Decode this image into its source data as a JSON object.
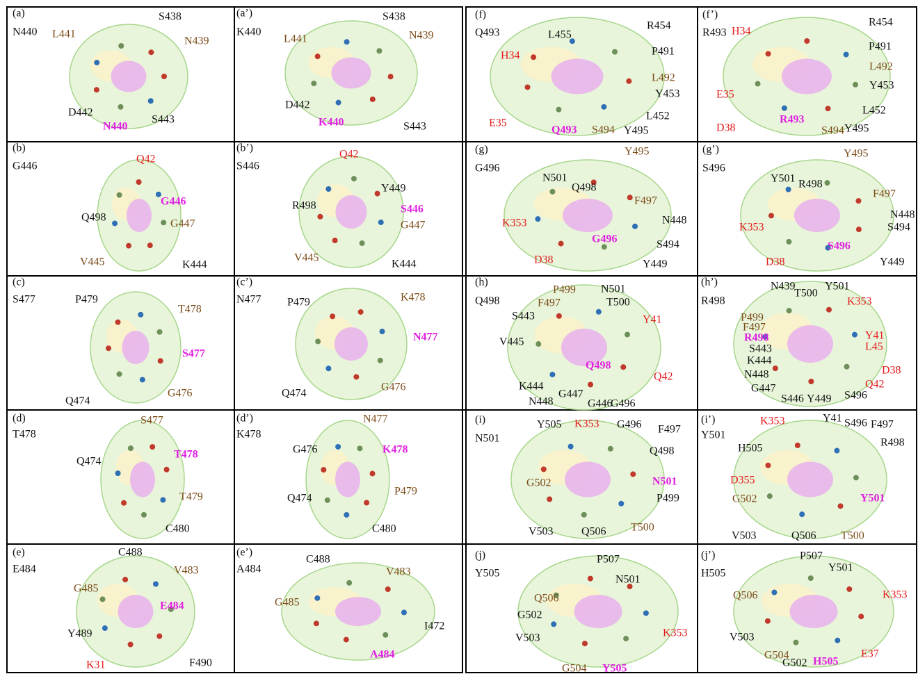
{
  "panels": [
    {
      "tag": "(a)",
      "name": "N440",
      "labels": [
        "L441",
        "S438",
        "N439",
        "D442",
        "S443",
        "N440"
      ]
    },
    {
      "tag": "(a’)",
      "name": "K440",
      "labels": [
        "L441",
        "S438",
        "N439",
        "D442",
        "S443",
        "K440"
      ]
    },
    {
      "tag": "(b)",
      "name": "G446",
      "labels": [
        "Q42",
        "G446",
        "Q498",
        "G447",
        "V445",
        "K444"
      ]
    },
    {
      "tag": "(b’)",
      "name": "S446",
      "labels": [
        "Q42",
        "Y449",
        "R498",
        "S446",
        "G447",
        "V445",
        "K444"
      ]
    },
    {
      "tag": "(c)",
      "name": "S477",
      "labels": [
        "P479",
        "T478",
        "S477",
        "Q474",
        "G476"
      ]
    },
    {
      "tag": "(c’)",
      "name": "N477",
      "labels": [
        "P479",
        "K478",
        "N477",
        "Q474",
        "G476"
      ]
    },
    {
      "tag": "(d)",
      "name": "T478",
      "labels": [
        "S477",
        "T478",
        "Q474",
        "T479",
        "C480"
      ]
    },
    {
      "tag": "(d’)",
      "name": "K478",
      "labels": [
        "N477",
        "G476",
        "K478",
        "Q474",
        "P479",
        "C480"
      ]
    },
    {
      "tag": "(e)",
      "name": "E484",
      "labels": [
        "C488",
        "V483",
        "G485",
        "E484",
        "Y489",
        "K31",
        "F490"
      ]
    },
    {
      "tag": "(e’)",
      "name": "A484",
      "labels": [
        "C488",
        "V483",
        "G485",
        "I472",
        "A484"
      ]
    },
    {
      "tag": "(f)",
      "name": "Q493",
      "labels": [
        "L455",
        "R454",
        "H34",
        "P491",
        "L492",
        "Y453",
        "L452",
        "E35",
        "Q493",
        "S494",
        "Y495"
      ]
    },
    {
      "tag": "(f’)",
      "name": "R493",
      "labels": [
        "R454",
        "H34",
        "P491",
        "L492",
        "Y453",
        "E35",
        "L452",
        "D38",
        "R493",
        "S494",
        "Y495"
      ]
    },
    {
      "tag": "(g)",
      "name": "G496",
      "labels": [
        "Y495",
        "N501",
        "Q498",
        "F497",
        "K353",
        "N448",
        "G496",
        "S494",
        "D38",
        "Y449"
      ]
    },
    {
      "tag": "(g’)",
      "name": "S496",
      "labels": [
        "Y495",
        "Y501",
        "R498",
        "F497",
        "N448",
        "S494",
        "K353",
        "S496",
        "D38",
        "Y449"
      ]
    },
    {
      "tag": "(h)",
      "name": "Q498",
      "labels": [
        "P499",
        "N501",
        "F497",
        "T500",
        "S443",
        "Y41",
        "V445",
        "Q498",
        "Q42",
        "K444",
        "G447",
        "N448",
        "G446",
        "G496"
      ]
    },
    {
      "tag": "(h’)",
      "name": "R498",
      "labels": [
        "N439",
        "T500",
        "Y501",
        "K353",
        "P499",
        "F497",
        "R498",
        "Y41",
        "S443",
        "L45",
        "K444",
        "N448",
        "D38",
        "G447",
        "Q42",
        "S446",
        "Y449",
        "S496"
      ]
    },
    {
      "tag": "(i)",
      "name": "N501",
      "labels": [
        "Y505",
        "K353",
        "G496",
        "F497",
        "Q498",
        "G502",
        "N501",
        "P499",
        "T500",
        "V503",
        "Q506"
      ]
    },
    {
      "tag": "(i’)",
      "name": "Y501",
      "labels": [
        "Y41",
        "S496",
        "F497",
        "K353",
        "R498",
        "H505",
        "D355",
        "Y501",
        "G502",
        "V503",
        "Q506",
        "T500"
      ]
    },
    {
      "tag": "(j)",
      "name": "Y505",
      "labels": [
        "P507",
        "N501",
        "Q506",
        "G502",
        "V503",
        "K353",
        "G504",
        "Y505"
      ]
    },
    {
      "tag": "(j’)",
      "name": "H505",
      "labels": [
        "P507",
        "Y501",
        "Q506",
        "K353",
        "V503",
        "G504",
        "G502",
        "H505",
        "E37"
      ]
    }
  ]
}
